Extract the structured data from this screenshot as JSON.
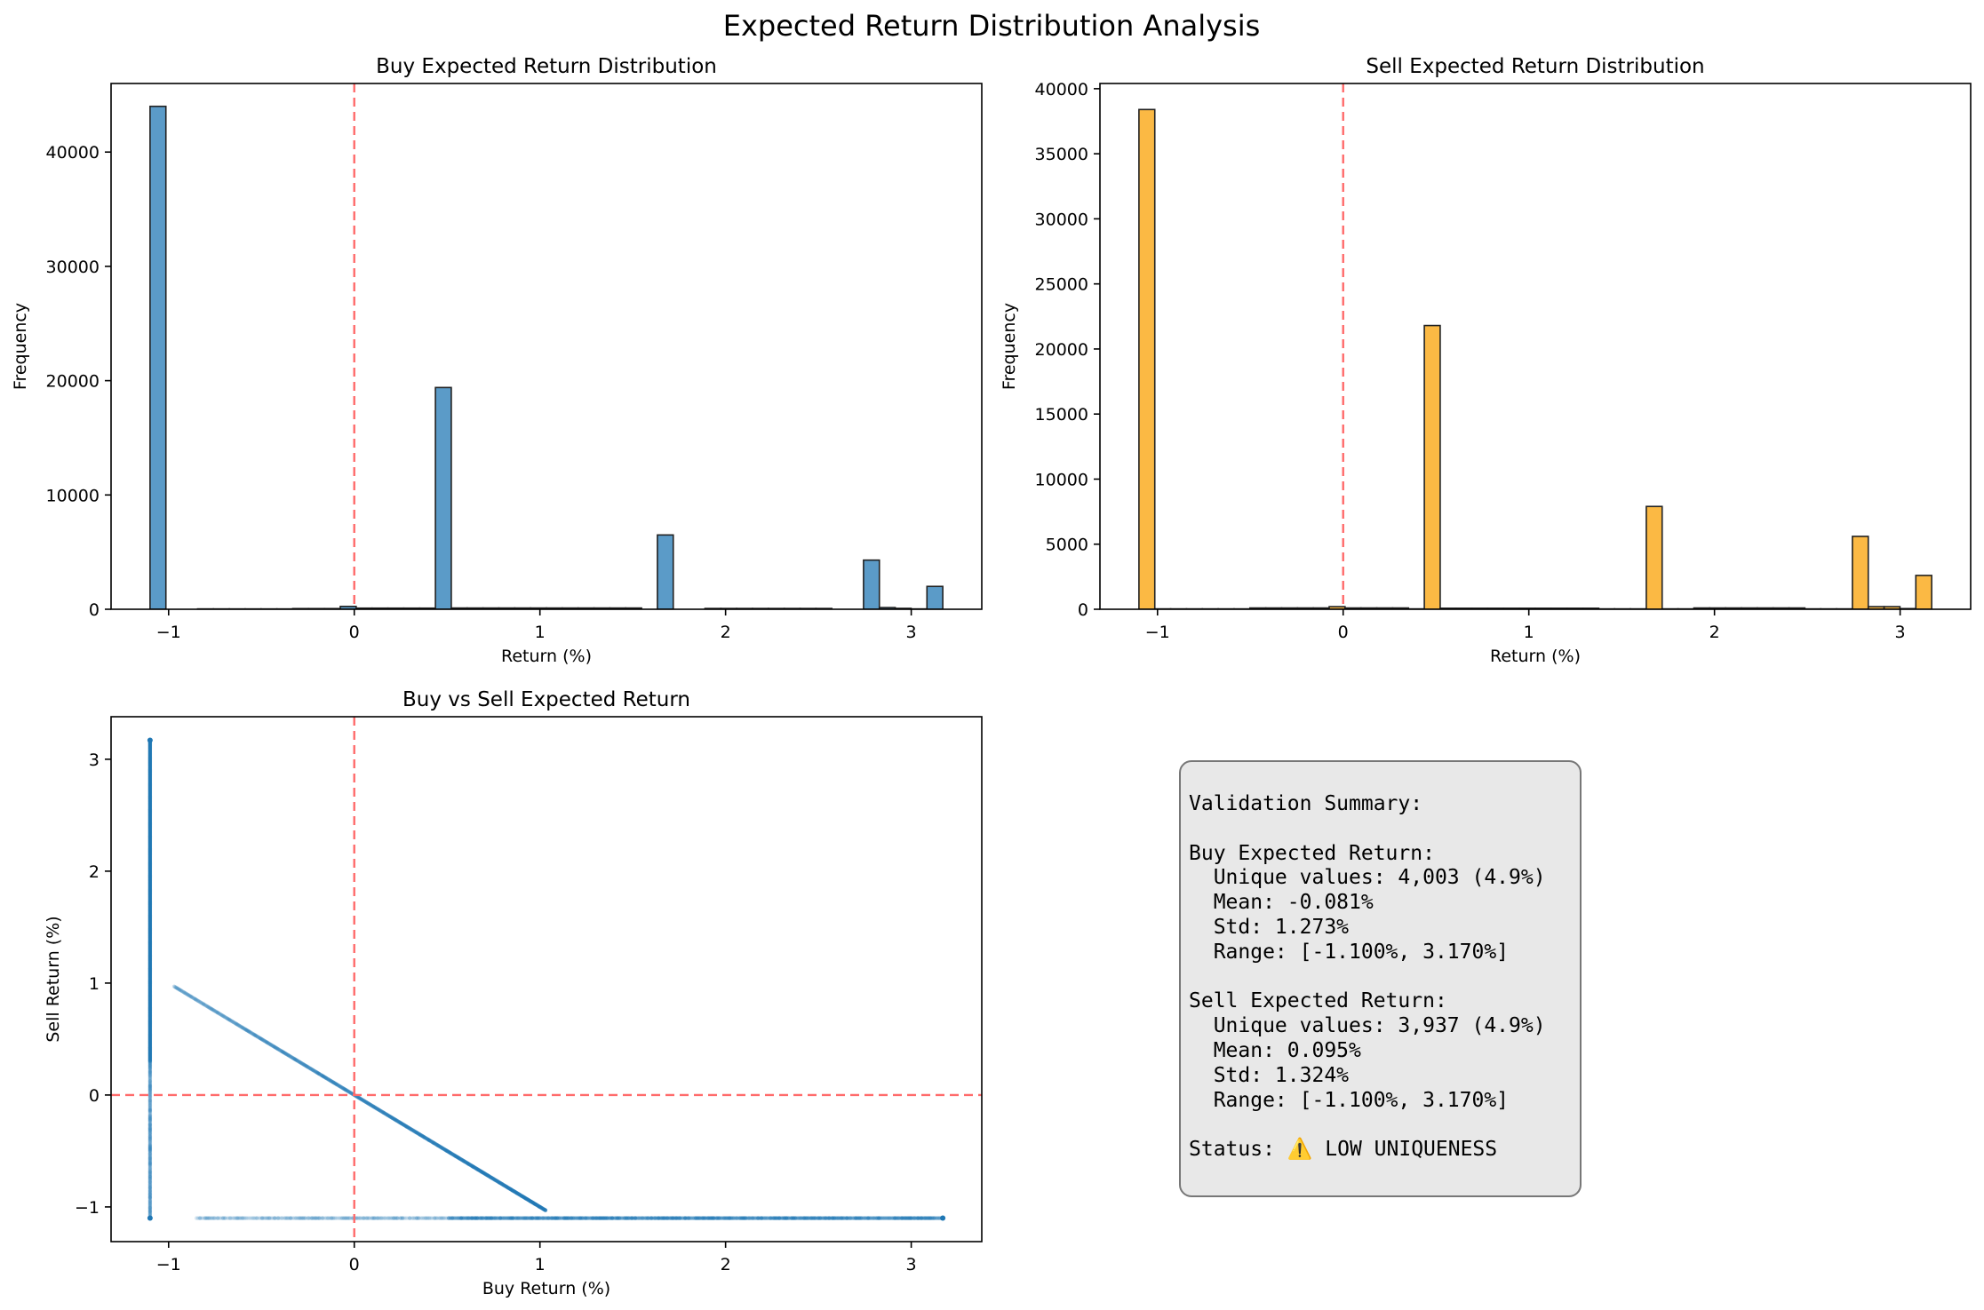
{
  "figure_title": "Expected Return Distribution Analysis",
  "colors": {
    "buy_bar": "#5b9bc8",
    "sell_bar": "#fbb944",
    "scatter": "#1f77b4",
    "zero_line": "#ff6b6b",
    "edge": "#222222"
  },
  "chart_data": [
    {
      "type": "bar",
      "title": "Buy Expected Return Distribution",
      "xlabel": "Return (%)",
      "ylabel": "Frequency",
      "xlim": [
        -1.31,
        3.38
      ],
      "ylim": [
        0,
        46000
      ],
      "xticks": [
        -1,
        0,
        1,
        2,
        3
      ],
      "yticks": [
        0,
        10000,
        20000,
        30000,
        40000
      ],
      "bin_range": [
        -1.1,
        3.17
      ],
      "bin_count": 50,
      "counts": [
        44000,
        0,
        0,
        30,
        30,
        30,
        30,
        30,
        30,
        60,
        60,
        60,
        250,
        100,
        100,
        100,
        100,
        100,
        19400,
        110,
        110,
        110,
        110,
        110,
        110,
        110,
        110,
        110,
        110,
        110,
        110,
        0,
        6500,
        0,
        0,
        70,
        70,
        70,
        70,
        70,
        70,
        70,
        70,
        0,
        0,
        4300,
        150,
        80,
        30,
        2000
      ],
      "reference_line": {
        "x": 0,
        "style": "dashed"
      },
      "grid": false,
      "legend": false
    },
    {
      "type": "bar",
      "title": "Sell Expected Return Distribution",
      "xlabel": "Return (%)",
      "ylabel": "Frequency",
      "xlim": [
        -1.31,
        3.38
      ],
      "ylim": [
        0,
        40400
      ],
      "xticks": [
        -1,
        0,
        1,
        2,
        3
      ],
      "yticks": [
        0,
        5000,
        10000,
        15000,
        20000,
        25000,
        30000,
        35000,
        40000
      ],
      "bin_range": [
        -1.1,
        3.17
      ],
      "bin_count": 50,
      "counts": [
        38400,
        30,
        30,
        30,
        30,
        30,
        30,
        100,
        100,
        100,
        100,
        100,
        200,
        100,
        100,
        100,
        100,
        30,
        21800,
        80,
        80,
        80,
        80,
        80,
        80,
        80,
        80,
        80,
        80,
        30,
        30,
        30,
        7900,
        30,
        30,
        100,
        100,
        100,
        100,
        100,
        100,
        100,
        30,
        30,
        30,
        5600,
        200,
        200,
        50,
        2600
      ],
      "reference_line": {
        "x": 0,
        "style": "dashed"
      },
      "grid": false,
      "legend": false
    },
    {
      "type": "scatter",
      "title": "Buy vs Sell Expected Return",
      "xlabel": "Buy Return (%)",
      "ylabel": "Sell Return (%)",
      "xlim": [
        -1.31,
        3.38
      ],
      "ylim": [
        -1.31,
        3.38
      ],
      "xticks": [
        -1,
        0,
        1,
        2,
        3
      ],
      "yticks": [
        -1,
        0,
        1,
        2,
        3
      ],
      "segments": [
        {
          "x": [
            -1.1,
            -1.1
          ],
          "y": [
            -1.1,
            3.17
          ]
        },
        {
          "x": [
            -0.97,
            1.03
          ],
          "y": [
            0.97,
            -1.03
          ]
        },
        {
          "x": [
            -0.85,
            3.17
          ],
          "y": [
            -1.1,
            -1.1
          ]
        }
      ],
      "reference_lines": [
        {
          "x": 0,
          "style": "dashed"
        },
        {
          "y": 0,
          "style": "dashed"
        }
      ],
      "grid": false,
      "legend": false
    }
  ],
  "summary": {
    "lines": [
      "Validation Summary:",
      "",
      "Buy Expected Return:",
      "  Unique values: 4,003 (4.9%)",
      "  Mean: -0.081%",
      "  Std: 1.273%",
      "  Range: [-1.100%, 3.170%]",
      "",
      "Sell Expected Return:",
      "  Unique values: 3,937 (4.9%)",
      "  Mean: 0.095%",
      "  Std: 1.324%",
      "  Range: [-1.100%, 3.170%]",
      "",
      "Status: ⚠️ LOW UNIQUENESS"
    ]
  }
}
